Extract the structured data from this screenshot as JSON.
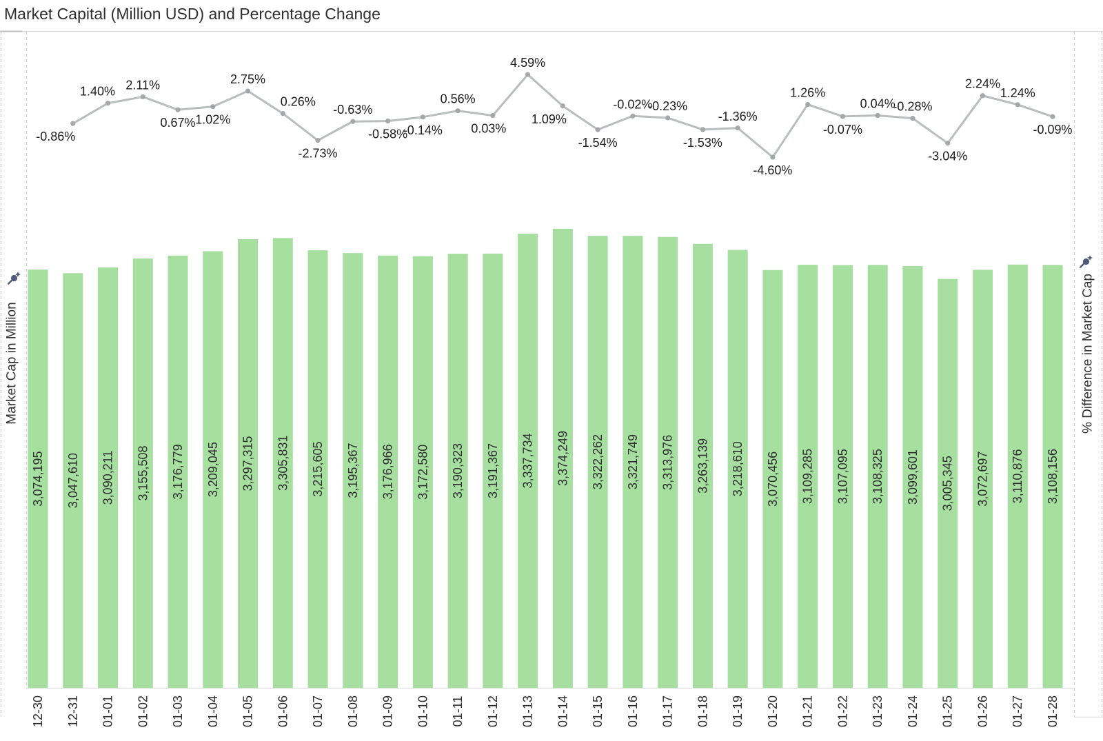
{
  "title": "Market Capital (Million USD) and Percentage Change",
  "left_axis": {
    "title": "Market Cap in Million",
    "icon": "pushpin-icon"
  },
  "right_axis": {
    "title": "% Difference in Market Cap",
    "icon": "pushpin-icon"
  },
  "colors": {
    "bar_fill": "#a6dfa0",
    "line_stroke": "#b9bdbd",
    "marker_fill": "#a4a8a9",
    "bar_label_text": "#2e2e2e",
    "percent_label_text": "#1c1c1c",
    "axis_text": "#333333",
    "pin_icon": "#4e5c77",
    "border": "#d4d4d4"
  },
  "chart_data": [
    {
      "type": "bar",
      "title": "Market Cap in Million",
      "categories": [
        "12-30",
        "12-31",
        "01-01",
        "01-02",
        "01-03",
        "01-04",
        "01-05",
        "01-06",
        "01-07",
        "01-08",
        "01-09",
        "01-10",
        "01-11",
        "01-12",
        "01-13",
        "01-14",
        "01-15",
        "01-16",
        "01-17",
        "01-18",
        "01-19",
        "01-20",
        "01-21",
        "01-22",
        "01-23",
        "01-24",
        "01-25",
        "01-26",
        "01-27",
        "01-28"
      ],
      "values": [
        3074195,
        3047610,
        3090211,
        3155508,
        3176779,
        3209045,
        3297315,
        3305831,
        3215605,
        3195367,
        3176966,
        3172580,
        3190323,
        3191367,
        3337734,
        3374249,
        3322262,
        3321749,
        3313976,
        3263139,
        3218610,
        3070456,
        3109285,
        3107095,
        3108325,
        3099601,
        3005345,
        3072697,
        3110876,
        3108156
      ],
      "labels": [
        "3,074,195",
        "3,047,610",
        "3,090,211",
        "3,155,508",
        "3,176,779",
        "3,209,045",
        "3,297,315",
        "3,305,831",
        "3,215,605",
        "3,195,367",
        "3,176,966",
        "3,172,580",
        "3,190,323",
        "3,191,367",
        "3,337,734",
        "3,374,249",
        "3,322,262",
        "3,321,749",
        "3,313,976",
        "3,263,139",
        "3,218,610",
        "3,070,456",
        "3,109,285",
        "3,107,095",
        "3,108,325",
        "3,099,601",
        "3,005,345",
        "3,072,697",
        "3,110,876",
        "3,108,156"
      ],
      "ylim": [
        0,
        3500000
      ],
      "grid": false,
      "legend": "none"
    },
    {
      "type": "line",
      "title": "% Difference in Market Cap",
      "categories": [
        "12-31",
        "01-01",
        "01-02",
        "01-03",
        "01-04",
        "01-05",
        "01-06",
        "01-07",
        "01-08",
        "01-09",
        "01-10",
        "01-11",
        "01-12",
        "01-13",
        "01-14",
        "01-15",
        "01-16",
        "01-17",
        "01-18",
        "01-19",
        "01-20",
        "01-21",
        "01-22",
        "01-23",
        "01-24",
        "01-25",
        "01-26",
        "01-27",
        "01-28"
      ],
      "values": [
        -0.86,
        1.4,
        2.11,
        0.67,
        1.02,
        2.75,
        0.26,
        -2.73,
        -0.63,
        -0.58,
        -0.14,
        0.56,
        0.03,
        4.59,
        1.09,
        -1.54,
        -0.02,
        -0.23,
        -1.53,
        -1.36,
        -4.6,
        1.26,
        -0.07,
        0.04,
        -0.28,
        -3.04,
        2.24,
        1.24,
        -0.09
      ],
      "labels": [
        "-0.86%",
        "1.40%",
        "2.11%",
        "0.67%",
        "1.02%",
        "2.75%",
        "0.26%",
        "-2.73%",
        "-0.63%",
        "-0.58%",
        "-0.14%",
        "0.56%",
        "0.03%",
        "4.59%",
        "1.09%",
        "-1.54%",
        "-0.02%",
        "-0.23%",
        "-1.53%",
        "-1.36%",
        "-4.60%",
        "1.26%",
        "-0.07%",
        "0.04%",
        "-0.28%",
        "-3.04%",
        "2.24%",
        "1.24%",
        "-0.09%"
      ],
      "label_side": [
        "below",
        "above",
        "above",
        "below",
        "below",
        "above",
        "above",
        "below",
        "above",
        "below",
        "below",
        "above",
        "below",
        "above",
        "below",
        "below",
        "above",
        "above",
        "below",
        "above",
        "below",
        "above",
        "below",
        "above",
        "above",
        "below",
        "above",
        "above",
        "below"
      ],
      "label_dx": [
        -25,
        -15,
        0,
        0,
        0,
        0,
        22,
        0,
        0,
        0,
        0,
        0,
        -6,
        0,
        -20,
        0,
        0,
        0,
        0,
        0,
        0,
        0,
        0,
        0,
        0,
        0,
        0,
        0,
        0
      ],
      "ylim": [
        -5.5,
        5.5
      ],
      "grid": false,
      "legend": "none"
    }
  ]
}
